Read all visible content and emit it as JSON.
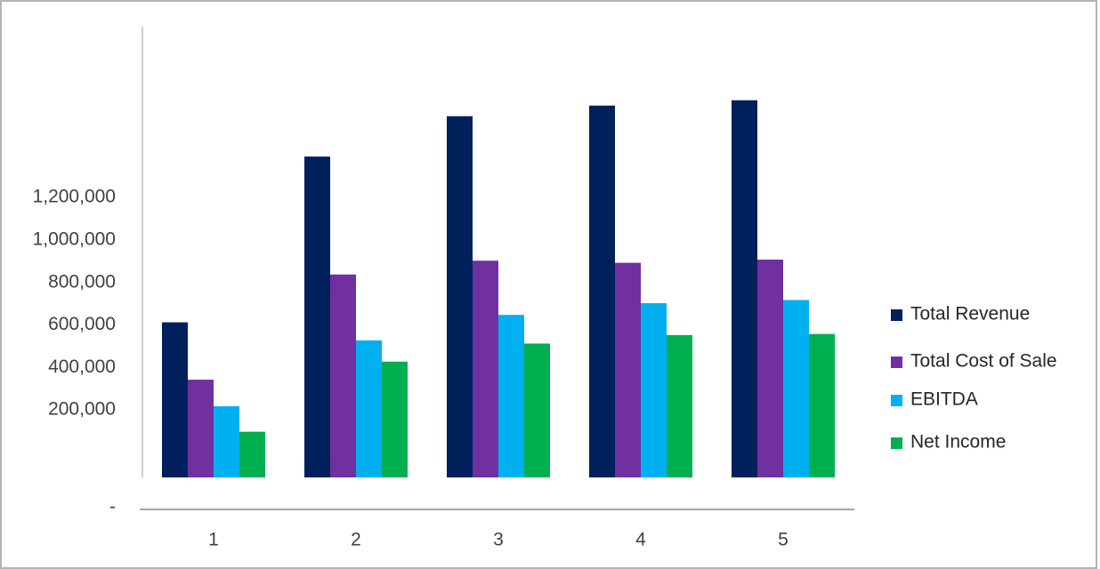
{
  "chart_data": {
    "type": "bar",
    "categories": [
      "1",
      "2",
      "3",
      "4",
      "5"
    ],
    "series": [
      {
        "name": "Total Revenue",
        "color": "#00205b",
        "values": [
          730000,
          1510000,
          1700000,
          1750000,
          1775000
        ]
      },
      {
        "name": "Total Cost of Sale",
        "color": "#7030a0",
        "values": [
          460000,
          955000,
          1020000,
          1010000,
          1025000
        ]
      },
      {
        "name": "EBITDA",
        "color": "#00b0f0",
        "values": [
          335000,
          645000,
          765000,
          820000,
          835000
        ]
      },
      {
        "name": "Net Income",
        "color": "#00b050",
        "values": [
          215000,
          545000,
          630000,
          670000,
          675000
        ]
      }
    ],
    "y_ticks": [
      {
        "value": 200000,
        "label": "200,000"
      },
      {
        "value": 400000,
        "label": "400,000"
      },
      {
        "value": 600000,
        "label": "600,000"
      },
      {
        "value": 800000,
        "label": "800,000"
      },
      {
        "value": 1000000,
        "label": "1,000,000"
      },
      {
        "value": 1200000,
        "label": "1,200,000"
      }
    ],
    "zero_label": "-",
    "title": "",
    "xlabel": "",
    "ylabel": "",
    "grid": false,
    "legend_position": "right"
  }
}
